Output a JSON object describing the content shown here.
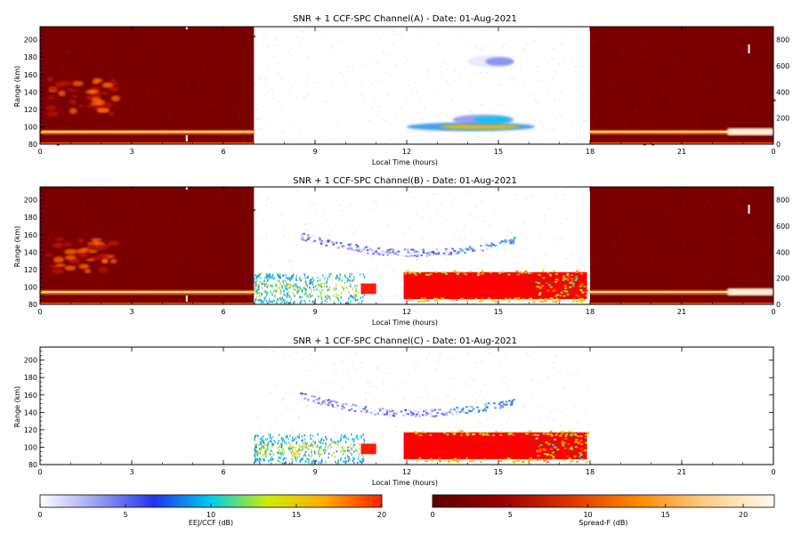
{
  "figure": {
    "colorbar_left": {
      "label": "EEJ/CCF (dB)",
      "ticks": [
        "0",
        "5",
        "10",
        "15",
        "20"
      ],
      "range": [
        0,
        20
      ],
      "colors": [
        "#ffffff",
        "#9aa0f0",
        "#2233ee",
        "#00ccee",
        "#ccee00",
        "#ffaa00",
        "#ff2200"
      ]
    },
    "colorbar_right": {
      "label": "Spread-F (dB)",
      "ticks": [
        "0",
        "5",
        "10",
        "15",
        "20"
      ],
      "range": [
        0,
        22
      ],
      "colors": [
        "#5a0000",
        "#990000",
        "#dd3300",
        "#ff8800",
        "#ffcc88",
        "#fffaf0"
      ]
    }
  },
  "chart_data": [
    {
      "type": "heatmap",
      "title": "SNR + 1 CCF-SPC Channel(A) - Date: 01-Aug-2021",
      "xlabel": "Local Time (hours)",
      "ylabel": "Range (km)",
      "xlim": [
        0,
        24
      ],
      "ylim": [
        80,
        215
      ],
      "y2lim": [
        0,
        900
      ],
      "x_ticks": [
        "0",
        "3",
        "6",
        "9",
        "12",
        "15",
        "18",
        "21",
        "0"
      ],
      "y_ticks": [
        "80",
        "100",
        "120",
        "140",
        "160",
        "180",
        "200"
      ],
      "y2_ticks": [
        "0",
        "200",
        "400",
        "600",
        "800"
      ],
      "spread_f_windows": [
        [
          0,
          7
        ],
        [
          18,
          24
        ]
      ],
      "features": [
        {
          "name": "EEJ echo",
          "x": [
            12.0,
            16.2
          ],
          "y": [
            97,
            103
          ],
          "snr_db": [
            6,
            14
          ]
        },
        {
          "name": "EEJ echo upper",
          "x": [
            13.5,
            15.5
          ],
          "y": [
            104,
            112
          ],
          "snr_db": [
            3,
            8
          ]
        },
        {
          "name": "150 km echo",
          "x": [
            14.0,
            15.5
          ],
          "y": [
            170,
            180
          ],
          "snr_db": [
            1,
            3
          ]
        }
      ]
    },
    {
      "type": "heatmap",
      "title": "SNR + 1 CCF-SPC Channel(B) - Date: 01-Aug-2021",
      "xlabel": "Local Time (hours)",
      "ylabel": "Range (km)",
      "xlim": [
        0,
        24
      ],
      "ylim": [
        80,
        215
      ],
      "y2lim": [
        0,
        900
      ],
      "x_ticks": [
        "0",
        "3",
        "6",
        "9",
        "12",
        "15",
        "18",
        "21",
        "0"
      ],
      "y_ticks": [
        "80",
        "100",
        "120",
        "140",
        "160",
        "180",
        "200"
      ],
      "y2_ticks": [
        "0",
        "200",
        "400",
        "600",
        "800"
      ],
      "spread_f_windows": [
        [
          0,
          7
        ],
        [
          18,
          24
        ]
      ],
      "features": [
        {
          "name": "EEJ strong echo",
          "x": [
            11.9,
            17.9
          ],
          "y": [
            86,
            117
          ],
          "snr_db": [
            15,
            20
          ]
        },
        {
          "name": "morning EEJ",
          "x": [
            7.0,
            10.6
          ],
          "y": [
            82,
            116
          ],
          "snr_db": [
            5,
            15
          ]
        },
        {
          "name": "150 km echo",
          "x": [
            8.5,
            15.5
          ],
          "y": [
            135,
            160
          ],
          "snr_db": [
            1,
            8
          ]
        }
      ]
    },
    {
      "type": "heatmap",
      "title": "SNR + 1 CCF-SPC Channel(C) - Date: 01-Aug-2021",
      "xlabel": "Local Time (hours)",
      "ylabel": "Range (km)",
      "xlim": [
        0,
        24
      ],
      "ylim": [
        80,
        215
      ],
      "x_ticks": [
        "0",
        "3",
        "6",
        "9",
        "12",
        "15",
        "18",
        "21",
        "0"
      ],
      "y_ticks": [
        "80",
        "100",
        "120",
        "140",
        "160",
        "180",
        "200"
      ],
      "features": [
        {
          "name": "EEJ strong echo",
          "x": [
            11.9,
            17.9
          ],
          "y": [
            86,
            117
          ],
          "snr_db": [
            15,
            20
          ]
        },
        {
          "name": "morning EEJ",
          "x": [
            7.0,
            10.6
          ],
          "y": [
            82,
            116
          ],
          "snr_db": [
            5,
            15
          ]
        },
        {
          "name": "150 km echo",
          "x": [
            8.5,
            15.5
          ],
          "y": [
            135,
            160
          ],
          "snr_db": [
            1,
            8
          ]
        }
      ]
    }
  ]
}
